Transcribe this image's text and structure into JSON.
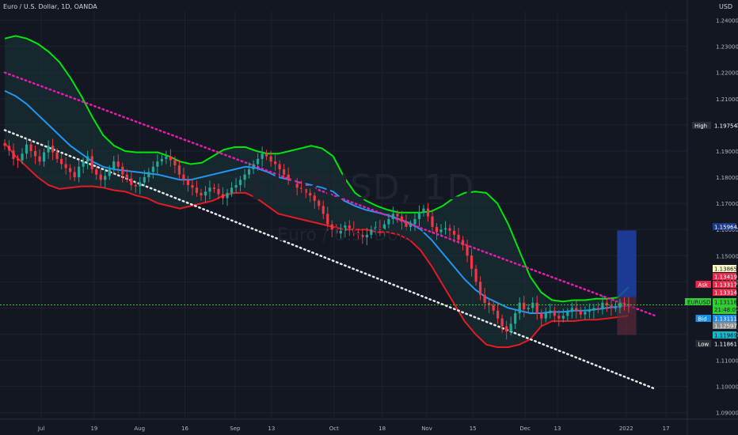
{
  "header": {
    "symbol_line": "Euro / U.S. Dollar, 1D, OANDA",
    "currency": "USD"
  },
  "watermark": {
    "main": "EURUSD, 1D",
    "sub": "Euro / U.S. Dollar"
  },
  "colors": {
    "bg": "#131722",
    "up": "#26a69a",
    "down": "#f23645",
    "bb_upper": "#00e60a",
    "bb_lower": "#e51b23",
    "bb_mid": "#2196f3",
    "bb_fill": "#1b3b3e",
    "trend_upper": "#e61cb0",
    "trend_lower": "#e8e8e8",
    "price_line": "#33cc33"
  },
  "axis": {
    "y_ticks": [
      "1.24000",
      "1.23000",
      "1.22000",
      "1.21000",
      "1.20000",
      "1.19000",
      "1.18000",
      "1.17000",
      "1.16000",
      "1.15000",
      "1.14000",
      "1.13000",
      "1.12000",
      "1.11000",
      "1.10000",
      "1.09000"
    ],
    "x_ticks": [
      "Jul",
      "19",
      "Aug",
      "16",
      "Sep",
      "13",
      "Oct",
      "18",
      "Nov",
      "15",
      "Dec",
      "13",
      "2022",
      "17"
    ]
  },
  "price_labels": [
    {
      "tag": "High",
      "value": "1.19754",
      "color": "#131722",
      "text_color": "#ffffff"
    },
    {
      "tag": "",
      "value": "1.15964",
      "color": "#1a3a8c",
      "text_color": "#ffffff"
    },
    {
      "tag": "",
      "value": "1.13865",
      "color": "#fff7c2",
      "text_color": "#131722"
    },
    {
      "tag": "",
      "value": "1.13419",
      "color": "#e6284a",
      "text_color": "#ffffff"
    },
    {
      "tag": "Ask",
      "value": "1.13317",
      "color": "#e6284a",
      "text_color": "#ffffff"
    },
    {
      "tag": "",
      "value": "1.13314",
      "color": "#e6284a",
      "text_color": "#ffffff"
    },
    {
      "tag": "EURUSD",
      "value": "1.13118",
      "sub": "21:48:09",
      "color": "#33cc33",
      "text_color": "#131722"
    },
    {
      "tag": "Bid",
      "value": "1.13111",
      "color": "#1c8ce6",
      "text_color": "#ffffff"
    },
    {
      "tag": "",
      "value": "1.12597",
      "color": "#8a8a8a",
      "text_color": "#ffffff"
    },
    {
      "tag": "",
      "value": "1.11969",
      "color": "#18b8c9",
      "text_color": "#131722"
    },
    {
      "tag": "Low",
      "value": "1.11861",
      "color": "#131722",
      "text_color": "#ffffff"
    }
  ],
  "chart_data": {
    "type": "candlestick",
    "ylim": [
      1.0875,
      1.2435
    ],
    "x_index_range": [
      0,
      169
    ],
    "price_line": 1.13118,
    "closes": [
      1.192,
      1.1902,
      1.187,
      1.1865,
      1.189,
      1.1925,
      1.19,
      1.188,
      1.186,
      1.1895,
      1.192,
      1.1895,
      1.187,
      1.185,
      1.1835,
      1.182,
      1.18,
      1.184,
      1.186,
      1.188,
      1.183,
      1.181,
      1.179,
      1.1805,
      1.183,
      1.186,
      1.184,
      1.181,
      1.1795,
      1.177,
      1.1765,
      1.178,
      1.18,
      1.182,
      1.184,
      1.186,
      1.187,
      1.188,
      1.1865,
      1.1845,
      1.181,
      1.179,
      1.177,
      1.176,
      1.174,
      1.173,
      1.1745,
      1.176,
      1.1755,
      1.1735,
      1.172,
      1.174,
      1.176,
      1.177,
      1.179,
      1.181,
      1.183,
      1.185,
      1.187,
      1.189,
      1.188,
      1.186,
      1.185,
      1.183,
      1.181,
      1.179,
      1.1775,
      1.176,
      1.1755,
      1.174,
      1.173,
      1.171,
      1.169,
      1.166,
      1.162,
      1.16,
      1.1585,
      1.1595,
      1.1615,
      1.1605,
      1.159,
      1.158,
      1.157,
      1.158,
      1.16,
      1.161,
      1.16,
      1.162,
      1.164,
      1.166,
      1.165,
      1.163,
      1.161,
      1.162,
      1.164,
      1.1665,
      1.168,
      1.165,
      1.161,
      1.159,
      1.16,
      1.1605,
      1.1595,
      1.158,
      1.156,
      1.154,
      1.15,
      1.145,
      1.14,
      1.135,
      1.132,
      1.131,
      1.129,
      1.126,
      1.123,
      1.121,
      1.124,
      1.128,
      1.132,
      1.1295,
      1.13,
      1.132,
      1.128,
      1.126,
      1.128,
      1.129,
      1.127,
      1.126,
      1.127,
      1.1285,
      1.13,
      1.129,
      1.1275,
      1.1285,
      1.129,
      1.13,
      1.1295,
      1.132,
      1.131,
      1.13,
      1.13,
      1.132,
      1.1315,
      1.1312
    ],
    "upper_band": [
      1.233,
      1.234,
      1.233,
      1.231,
      1.228,
      1.224,
      1.218,
      1.211,
      1.203,
      1.196,
      1.192,
      1.19,
      1.1895,
      1.1895,
      1.1895,
      1.188,
      1.186,
      1.185,
      1.1855,
      1.188,
      1.1905,
      1.1915,
      1.1915,
      1.19,
      1.189,
      1.189,
      1.19,
      1.191,
      1.192,
      1.191,
      1.188,
      1.18,
      1.174,
      1.171,
      1.169,
      1.1675,
      1.1665,
      1.1665,
      1.1665,
      1.167,
      1.169,
      1.172,
      1.174,
      1.1745,
      1.174,
      1.17,
      1.162,
      1.152,
      1.142,
      1.136,
      1.133,
      1.1325,
      1.133,
      1.133,
      1.1335,
      1.1335,
      1.134,
      1.138
    ],
    "lower_band": [
      1.193,
      1.188,
      1.184,
      1.18,
      1.177,
      1.1755,
      1.176,
      1.1765,
      1.1765,
      1.176,
      1.175,
      1.1745,
      1.173,
      1.172,
      1.17,
      1.169,
      1.168,
      1.169,
      1.17,
      1.171,
      1.173,
      1.174,
      1.174,
      1.172,
      1.169,
      1.166,
      1.165,
      1.164,
      1.163,
      1.162,
      1.161,
      1.16,
      1.16,
      1.16,
      1.159,
      1.159,
      1.158,
      1.156,
      1.152,
      1.146,
      1.139,
      1.132,
      1.125,
      1.12,
      1.116,
      1.115,
      1.115,
      1.116,
      1.118,
      1.123,
      1.125,
      1.125,
      1.125,
      1.1255,
      1.1255,
      1.126,
      1.1265,
      1.127
    ],
    "middle_band": [
      1.213,
      1.211,
      1.208,
      1.204,
      1.2,
      1.196,
      1.192,
      1.189,
      1.186,
      1.184,
      1.183,
      1.1825,
      1.182,
      1.1815,
      1.181,
      1.18,
      1.179,
      1.179,
      1.18,
      1.181,
      1.182,
      1.183,
      1.184,
      1.1835,
      1.182,
      1.18,
      1.179,
      1.178,
      1.177,
      1.176,
      1.1745,
      1.171,
      1.169,
      1.1675,
      1.1665,
      1.1655,
      1.164,
      1.1625,
      1.16,
      1.156,
      1.151,
      1.146,
      1.141,
      1.137,
      1.134,
      1.132,
      1.13,
      1.129,
      1.128,
      1.128,
      1.1285,
      1.1285,
      1.129,
      1.129,
      1.1295,
      1.13,
      1.1305,
      1.131
    ],
    "trendlines": [
      {
        "name": "",
        "from": [
          0,
          1.22
        ],
        "to": [
          169,
          1.127
        ],
        "style": "dotted"
      },
      {
        "name": "",
        "from": [
          0,
          1.198
        ],
        "to": [
          169,
          1.099
        ],
        "style": "dotted"
      }
    ],
    "position_box": {
      "x_from": 159,
      "x_to": 164,
      "entry": 1.13419,
      "target": 1.15964,
      "stop": 1.11969
    }
  }
}
